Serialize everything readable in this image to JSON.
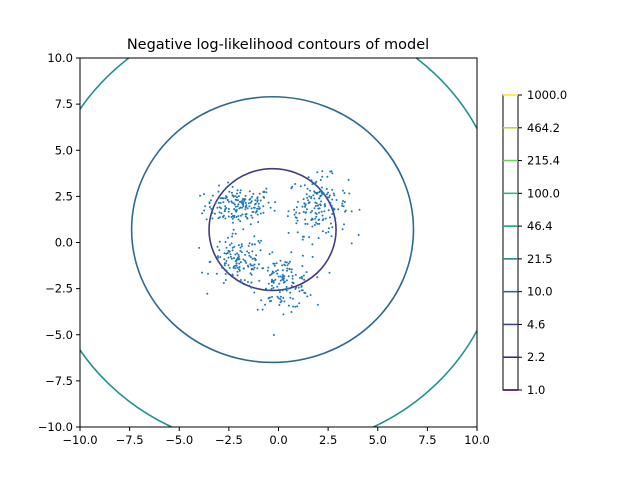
{
  "chart_data": {
    "type": "contour",
    "title": "Negative log-likelihood contours of model",
    "xlabel": "",
    "ylabel": "",
    "xlim": [
      -10,
      10
    ],
    "ylim": [
      -10,
      10
    ],
    "xticks": [
      "−10.0",
      "−7.5",
      "−5.0",
      "−2.5",
      "0.0",
      "2.5",
      "5.0",
      "7.5",
      "10.0"
    ],
    "yticks": [
      "−10.0",
      "−7.5",
      "−5.0",
      "−2.5",
      "0.0",
      "2.5",
      "5.0",
      "7.5",
      "10.0"
    ],
    "xtick_values": [
      -10,
      -7.5,
      -5,
      -2.5,
      0,
      2.5,
      5,
      7.5,
      10
    ],
    "ytick_values": [
      -10,
      -7.5,
      -5,
      -2.5,
      0,
      2.5,
      5,
      7.5,
      10
    ],
    "grid": false,
    "contours": [
      {
        "level": "10.0",
        "center": [
          -0.3,
          0.7
        ],
        "radius_x": 7.1,
        "radius_y": 7.2,
        "color": "#31688e"
      },
      {
        "level": "21.5",
        "center": [
          -0.3,
          0.7
        ],
        "radius_x": 11.6,
        "radius_y": 11.9,
        "color": "#21908d"
      },
      {
        "level": "4.6",
        "center": [
          -0.3,
          0.7
        ],
        "radius_x": 3.2,
        "radius_y": 3.3,
        "color": "#443a83"
      }
    ],
    "scatter_clusters": [
      {
        "center": [
          -2.0,
          2.0
        ],
        "spread": [
          0.85,
          0.5
        ],
        "count": 170
      },
      {
        "center": [
          2.0,
          2.0
        ],
        "spread": [
          0.75,
          0.8
        ],
        "count": 170
      },
      {
        "center": [
          -2.0,
          -1.0
        ],
        "spread": [
          0.7,
          0.7
        ],
        "count": 130
      },
      {
        "center": [
          0.2,
          -2.2
        ],
        "spread": [
          0.75,
          0.7
        ],
        "count": 140
      }
    ],
    "scatter_color": "#1f77b4",
    "colorbar": {
      "ticks": [
        "1000.0",
        "464.2",
        "215.4",
        "100.0",
        "46.4",
        "21.5",
        "10.0",
        "4.6",
        "2.2",
        "1.0"
      ],
      "colors": [
        "#fde725",
        "#b5de2b",
        "#6ece58",
        "#35b779",
        "#1f9e89",
        "#26828e",
        "#31688e",
        "#3e4989",
        "#482878",
        "#440154"
      ]
    }
  }
}
